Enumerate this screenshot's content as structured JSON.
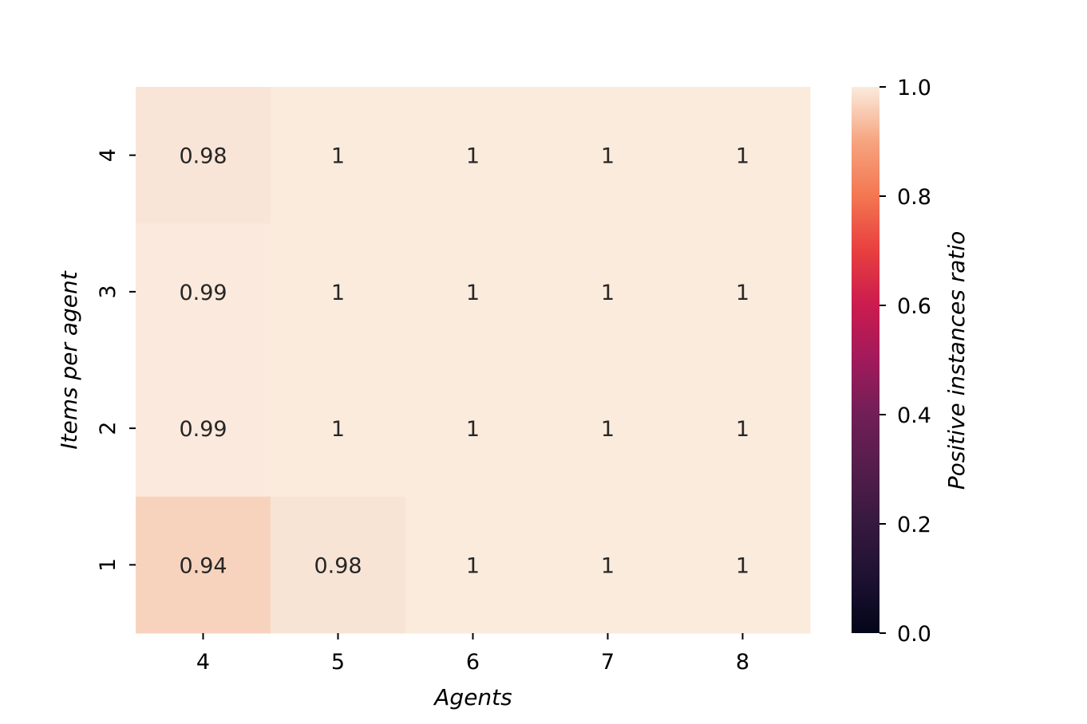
{
  "chart_data": {
    "type": "heatmap",
    "xlabel": "Agents",
    "ylabel": "Items per agent",
    "x_categories": [
      "4",
      "5",
      "6",
      "7",
      "8"
    ],
    "y_categories": [
      "4",
      "3",
      "2",
      "1"
    ],
    "values": [
      [
        0.98,
        1.0,
        1.0,
        1.0,
        1.0
      ],
      [
        0.99,
        1.0,
        1.0,
        1.0,
        1.0
      ],
      [
        0.99,
        1.0,
        1.0,
        1.0,
        1.0
      ],
      [
        0.94,
        0.98,
        1.0,
        1.0,
        1.0
      ]
    ],
    "cell_labels": [
      [
        "0.98",
        "1",
        "1",
        "1",
        "1"
      ],
      [
        "0.99",
        "1",
        "1",
        "1",
        "1"
      ],
      [
        "0.99",
        "1",
        "1",
        "1",
        "1"
      ],
      [
        "0.94",
        "0.98",
        "1",
        "1",
        "1"
      ]
    ],
    "colorbar": {
      "label": "Positive instances ratio",
      "range": [
        0.0,
        1.0
      ],
      "ticks": [
        "0.0",
        "0.2",
        "0.4",
        "0.6",
        "0.8",
        "1.0"
      ],
      "colormap": "rocket"
    },
    "cell_colors": [
      [
        "#f9e5d7",
        "#faebdd",
        "#faebdd",
        "#faebdd",
        "#faebdd"
      ],
      [
        "#fae9dc",
        "#faebdd",
        "#faebdd",
        "#faebdd",
        "#faebdd"
      ],
      [
        "#fae9dc",
        "#faebdd",
        "#faebdd",
        "#faebdd",
        "#faebdd"
      ],
      [
        "#f7d3bd",
        "#f8e4d5",
        "#faebdd",
        "#faebdd",
        "#faebdd"
      ]
    ]
  }
}
